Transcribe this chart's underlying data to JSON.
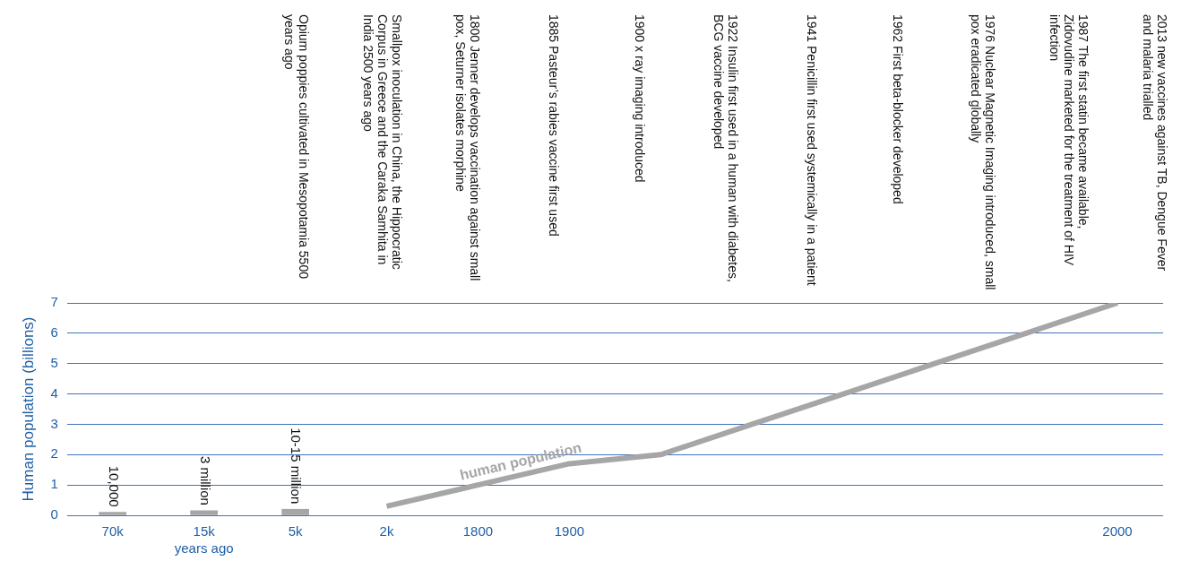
{
  "chart_data": {
    "type": "bar",
    "ylabel": "Human population (billions)",
    "xlabel": "years ago",
    "categories": [
      "70k",
      "15k",
      "5k",
      "2k",
      "1800",
      "1900",
      null,
      null,
      null,
      null,
      null,
      "2000"
    ],
    "series": [
      {
        "color": "#a6a6a6",
        "values": [
          0.1,
          0.15,
          0.2,
          null,
          null,
          null,
          null,
          null,
          null,
          null,
          null,
          null
        ]
      },
      {
        "type": "line",
        "name": "human population",
        "color": "#a6a6a6",
        "values": [
          null,
          null,
          null,
          0.3,
          1.0,
          1.7,
          2.0,
          3.0,
          4.0,
          5.0,
          6.0,
          7.0
        ]
      }
    ],
    "ylim": [
      0,
      7
    ],
    "yticks": [
      0,
      1,
      2,
      3,
      4,
      5,
      6,
      7
    ],
    "grid": "y",
    "legend": false,
    "marker": "none",
    "line_style": "solid",
    "annotations": [
      {
        "text": "10,000",
        "x": "70k",
        "y": 0.1
      },
      {
        "text": "3 million",
        "x": "15k",
        "y": 0.15
      },
      {
        "text": "10-15 million",
        "x": "5k",
        "y": 0.2
      },
      "Opium poppies cultivated in Mesopotamia 5500 years ago",
      "Smallpox inoculation in China, the Hippocratic Corpus in Greece and the Caraka Samhita in India 2500 years ago",
      "1800 Jenner develops vaccination against small pox, Seturner isolates morphine",
      "1885 Pasteur’s rabies vaccine first used",
      "1900 x ray imaging introduced",
      "1922 Insulin first used in a human with diabetes, BCG vaccine developed",
      "1941 Penicillin first used systemically in a patient",
      "1962 First beta-blocker developed",
      "1976 Nuclear Magnetic Imaging introduced, small pox eradicated globally",
      "1987 The first statin became available, Zidovudine marketed for the treatment of HIV infection",
      "2013 new vaccines against TB, Dengue Fever and malaria trialled"
    ]
  }
}
